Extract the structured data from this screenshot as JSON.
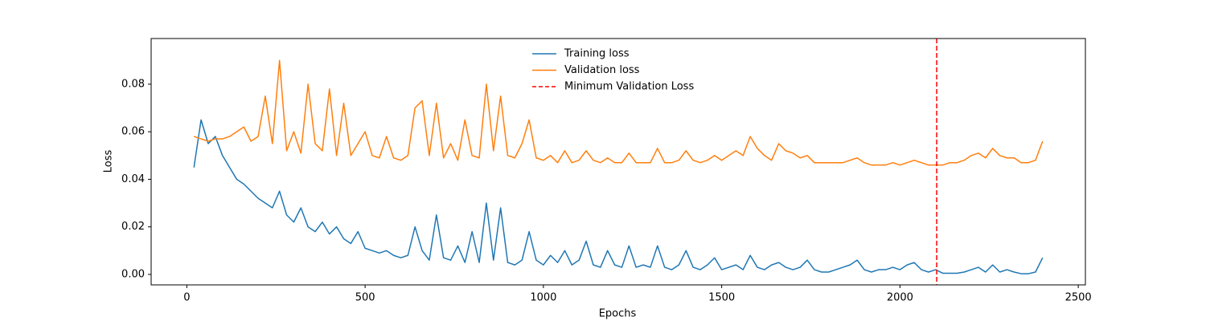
{
  "chart_data": {
    "type": "line",
    "xlabel": "Epochs",
    "ylabel": "Loss",
    "xlim": [
      -100,
      2520
    ],
    "ylim": [
      -0.0044,
      0.0992
    ],
    "xticks": [
      0,
      500,
      1000,
      1500,
      2000,
      2500
    ],
    "yticks": [
      {
        "value": 0,
        "label": "0.00"
      },
      {
        "value": 0.02,
        "label": "0.02"
      },
      {
        "value": 0.04,
        "label": "0.04"
      },
      {
        "value": 0.06,
        "label": "0.06"
      },
      {
        "value": 0.08,
        "label": "0.08"
      }
    ],
    "legend": "upper center",
    "grid": false,
    "x": [
      20,
      40,
      60,
      80,
      100,
      120,
      140,
      160,
      180,
      200,
      220,
      240,
      260,
      280,
      300,
      320,
      340,
      360,
      380,
      400,
      420,
      440,
      460,
      480,
      500,
      520,
      540,
      560,
      580,
      600,
      620,
      640,
      660,
      680,
      700,
      720,
      740,
      760,
      780,
      800,
      820,
      840,
      860,
      880,
      900,
      920,
      940,
      960,
      980,
      1000,
      1020,
      1040,
      1060,
      1080,
      1100,
      1120,
      1140,
      1160,
      1180,
      1200,
      1220,
      1240,
      1260,
      1280,
      1300,
      1320,
      1340,
      1360,
      1380,
      1400,
      1420,
      1440,
      1460,
      1480,
      1500,
      1520,
      1540,
      1560,
      1580,
      1600,
      1620,
      1640,
      1660,
      1680,
      1700,
      1720,
      1740,
      1760,
      1780,
      1800,
      1820,
      1840,
      1860,
      1880,
      1900,
      1920,
      1940,
      1960,
      1980,
      2000,
      2020,
      2040,
      2060,
      2080,
      2100,
      2120,
      2140,
      2160,
      2180,
      2200,
      2220,
      2240,
      2260,
      2280,
      2300,
      2320,
      2340,
      2360,
      2380,
      2400
    ],
    "series": [
      {
        "name": "Training loss",
        "color": "#1f77b4",
        "values": [
          0.045,
          0.065,
          0.055,
          0.058,
          0.05,
          0.045,
          0.04,
          0.038,
          0.035,
          0.032,
          0.03,
          0.028,
          0.035,
          0.025,
          0.022,
          0.028,
          0.02,
          0.018,
          0.022,
          0.017,
          0.02,
          0.015,
          0.013,
          0.018,
          0.011,
          0.01,
          0.009,
          0.01,
          0.008,
          0.007,
          0.008,
          0.02,
          0.01,
          0.006,
          0.025,
          0.007,
          0.006,
          0.012,
          0.005,
          0.018,
          0.005,
          0.03,
          0.006,
          0.028,
          0.005,
          0.004,
          0.006,
          0.018,
          0.006,
          0.004,
          0.008,
          0.005,
          0.01,
          0.004,
          0.006,
          0.014,
          0.004,
          0.003,
          0.01,
          0.004,
          0.003,
          0.012,
          0.003,
          0.004,
          0.003,
          0.012,
          0.003,
          0.002,
          0.004,
          0.01,
          0.003,
          0.002,
          0.004,
          0.007,
          0.002,
          0.003,
          0.004,
          0.002,
          0.008,
          0.003,
          0.002,
          0.004,
          0.005,
          0.003,
          0.002,
          0.003,
          0.006,
          0.002,
          0.001,
          0.001,
          0.002,
          0.003,
          0.004,
          0.006,
          0.002,
          0.001,
          0.002,
          0.002,
          0.003,
          0.002,
          0.004,
          0.005,
          0.002,
          0.001,
          0.002,
          0.0005,
          0.0005,
          0.0005,
          0.001,
          0.002,
          0.003,
          0.001,
          0.004,
          0.001,
          0.002,
          0.001,
          0.0003,
          0.0003,
          0.001,
          0.007
        ]
      },
      {
        "name": "Validation loss",
        "color": "#ff7f0e",
        "values": [
          0.058,
          0.057,
          0.056,
          0.057,
          0.057,
          0.058,
          0.06,
          0.062,
          0.056,
          0.058,
          0.075,
          0.055,
          0.09,
          0.052,
          0.06,
          0.051,
          0.08,
          0.055,
          0.052,
          0.078,
          0.05,
          0.072,
          0.05,
          0.055,
          0.06,
          0.05,
          0.049,
          0.058,
          0.049,
          0.048,
          0.05,
          0.07,
          0.073,
          0.05,
          0.072,
          0.049,
          0.055,
          0.048,
          0.065,
          0.05,
          0.049,
          0.08,
          0.052,
          0.075,
          0.05,
          0.049,
          0.055,
          0.065,
          0.049,
          0.048,
          0.05,
          0.047,
          0.052,
          0.047,
          0.048,
          0.052,
          0.048,
          0.047,
          0.049,
          0.047,
          0.047,
          0.051,
          0.047,
          0.047,
          0.047,
          0.053,
          0.047,
          0.047,
          0.048,
          0.052,
          0.048,
          0.047,
          0.048,
          0.05,
          0.048,
          0.05,
          0.052,
          0.05,
          0.058,
          0.053,
          0.05,
          0.048,
          0.055,
          0.052,
          0.051,
          0.049,
          0.05,
          0.047,
          0.047,
          0.047,
          0.047,
          0.047,
          0.048,
          0.049,
          0.047,
          0.046,
          0.046,
          0.046,
          0.047,
          0.046,
          0.047,
          0.048,
          0.047,
          0.046,
          0.046,
          0.046,
          0.047,
          0.047,
          0.048,
          0.05,
          0.051,
          0.049,
          0.053,
          0.05,
          0.049,
          0.049,
          0.047,
          0.047,
          0.048,
          0.056
        ]
      }
    ],
    "vline": {
      "name": "Minimum Validation Loss",
      "color": "#ff0000",
      "x": 2103
    }
  }
}
